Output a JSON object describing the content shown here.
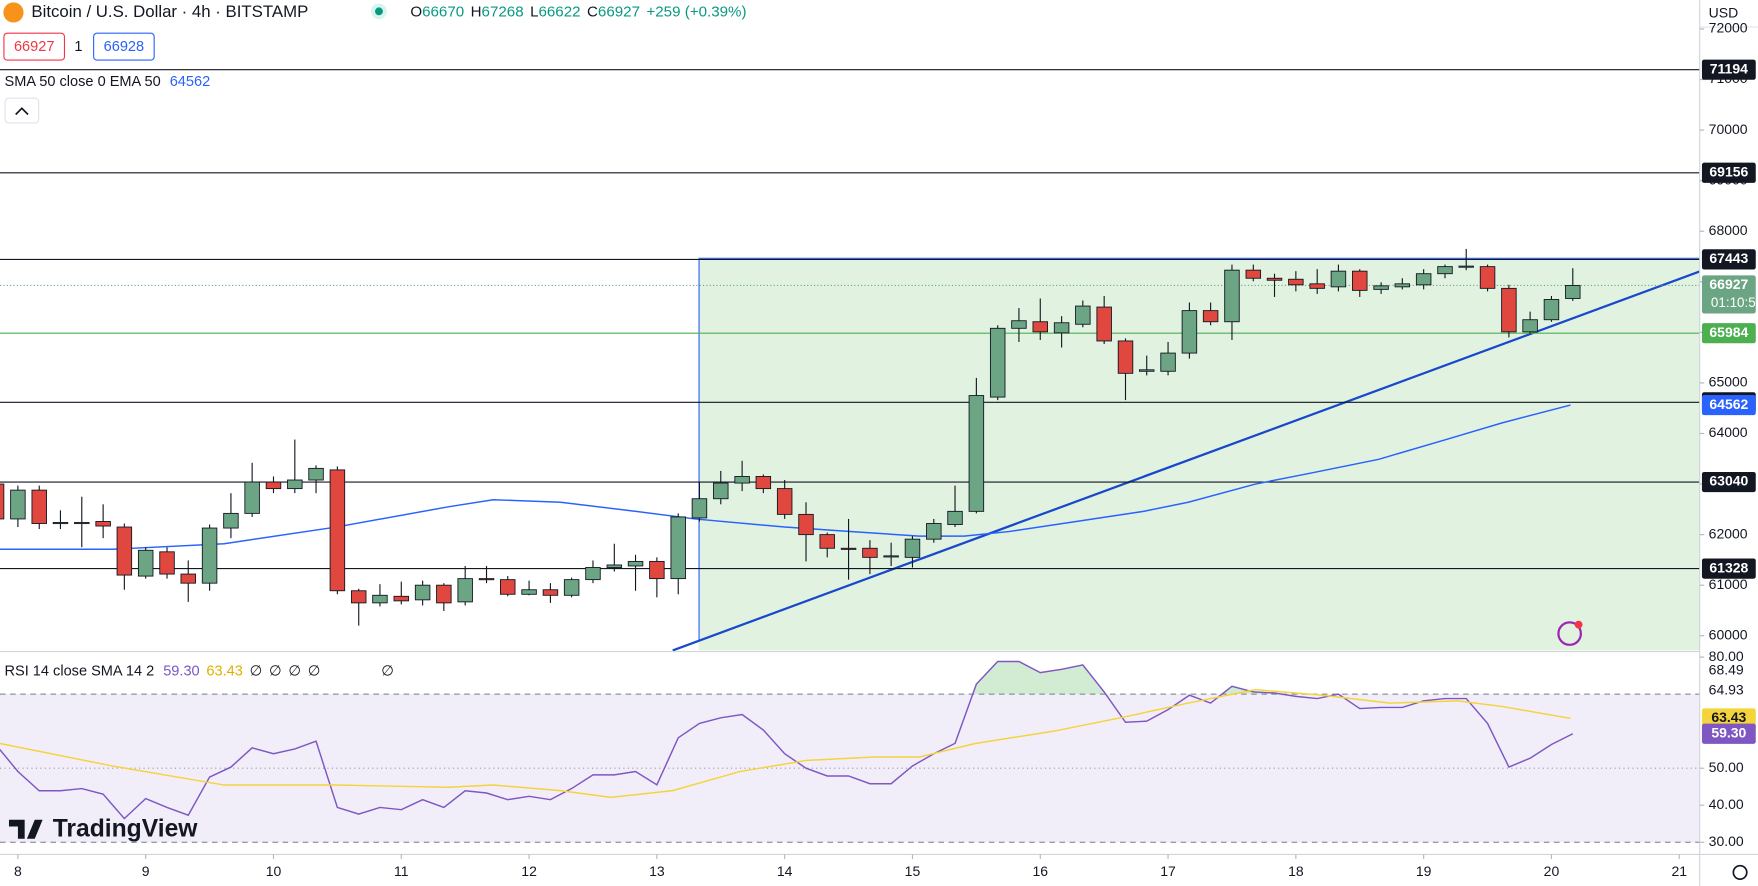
{
  "toolbar": {
    "symbol": "Bitcoin / U.S. Dollar · 4h · BITSTAMP",
    "ohlc_labels": [
      "O",
      "H",
      "L",
      "C"
    ],
    "change": "+259 (+0.39%)",
    "bid": 66927,
    "spread": 1,
    "ask": 66928,
    "indicator_label": "SMA 50 close 0 EMA 50",
    "axis_unit": "USD",
    "logo": "TradingView",
    "countdown": "01:10:5"
  },
  "chart_data": [
    {
      "type": "candlestick",
      "x": [
        7.833,
        8,
        8.167,
        8.333,
        8.5,
        8.667,
        8.833,
        9,
        9.167,
        9.333,
        9.5,
        9.667,
        9.833,
        10,
        10.167,
        10.333,
        10.5,
        10.667,
        10.833,
        11,
        11.167,
        11.333,
        11.5,
        11.667,
        11.833,
        12,
        12.167,
        12.333,
        12.5,
        12.667,
        12.833,
        13,
        13.167,
        13.333,
        13.5,
        13.667,
        13.833,
        14,
        14.167,
        14.333,
        14.5,
        14.667,
        14.833,
        15,
        15.167,
        15.333,
        15.5,
        15.667,
        15.833,
        16,
        16.167,
        16.333,
        16.5,
        16.667,
        16.833,
        17,
        17.167,
        17.333,
        17.5,
        17.667,
        17.833,
        18,
        18.167,
        18.333,
        18.5,
        18.667,
        18.833,
        19,
        19.167,
        19.333,
        19.5,
        19.667,
        19.833,
        20,
        20.167
      ],
      "open": [
        63000,
        62310,
        62880,
        62220,
        62240,
        62260,
        62150,
        61180,
        61660,
        61220,
        61040,
        62130,
        62420,
        63040,
        62910,
        63080,
        63280,
        60890,
        60650,
        60780,
        60710,
        61000,
        60670,
        61130,
        61110,
        60820,
        60910,
        60800,
        61110,
        61350,
        61380,
        61470,
        61130,
        62330,
        62710,
        63020,
        63150,
        62910,
        62400,
        62000,
        61730,
        61730,
        61580,
        61550,
        61910,
        62200,
        62460,
        64720,
        66080,
        66210,
        65990,
        66160,
        66500,
        65830,
        65230,
        65230,
        65590,
        66430,
        66210,
        67230,
        67070,
        67050,
        66960,
        66900,
        67210,
        66850,
        66900,
        66940,
        67160,
        67300,
        67300,
        66870,
        66010,
        66250,
        66670
      ],
      "high": [
        63080,
        62970,
        62970,
        62480,
        62750,
        62600,
        62220,
        61750,
        61750,
        61490,
        62200,
        62820,
        63420,
        63150,
        63880,
        63370,
        63350,
        60930,
        61020,
        61070,
        61090,
        61040,
        61380,
        61380,
        61180,
        61090,
        61040,
        61150,
        61490,
        61820,
        61600,
        61550,
        62420,
        63040,
        63260,
        63460,
        63190,
        63080,
        62640,
        62040,
        62310,
        61890,
        61840,
        61970,
        62310,
        62970,
        65100,
        66140,
        66480,
        66670,
        66320,
        66630,
        66720,
        65880,
        65540,
        65810,
        66590,
        66590,
        67340,
        67340,
        67160,
        67210,
        67250,
        67340,
        67250,
        66990,
        67070,
        67250,
        67340,
        67650,
        67340,
        66940,
        66410,
        66720,
        67268
      ],
      "low": [
        62260,
        62150,
        62110,
        62110,
        61750,
        61930,
        60910,
        61130,
        61130,
        60670,
        60890,
        61930,
        62350,
        62820,
        62820,
        62820,
        60820,
        60200,
        60580,
        60620,
        60600,
        60490,
        60600,
        61040,
        60780,
        60800,
        60650,
        60760,
        61040,
        61270,
        60890,
        60760,
        60820,
        62260,
        62600,
        62860,
        62820,
        62310,
        61470,
        61550,
        61110,
        61220,
        61380,
        61350,
        61840,
        62150,
        62420,
        64660,
        65810,
        65850,
        65700,
        66100,
        65770,
        64660,
        65150,
        65150,
        65480,
        66140,
        65850,
        67010,
        66700,
        66810,
        66760,
        66810,
        66700,
        66760,
        66850,
        66850,
        67070,
        67230,
        66810,
        65900,
        65970,
        66210,
        66622
      ],
      "close": [
        62310,
        62880,
        62220,
        62240,
        62240,
        62170,
        61200,
        61690,
        61220,
        61040,
        62130,
        62420,
        63040,
        62910,
        63080,
        63310,
        60890,
        60650,
        60800,
        60690,
        61000,
        60650,
        61130,
        61110,
        60820,
        60910,
        60800,
        61110,
        61350,
        61400,
        61470,
        61130,
        62350,
        62710,
        63020,
        63150,
        62910,
        62400,
        62000,
        61730,
        61710,
        61550,
        61580,
        61910,
        62220,
        62460,
        64750,
        66080,
        66230,
        66010,
        66190,
        66520,
        65830,
        65190,
        65260,
        65590,
        66430,
        66210,
        67230,
        67070,
        67030,
        66940,
        66870,
        67210,
        66830,
        66920,
        66960,
        67160,
        67300,
        67310,
        66870,
        66010,
        66250,
        66650,
        66927
      ],
      "up_color": "#6ba583",
      "down_color": "#e0473e",
      "xlim": [
        7.86,
        21.16
      ],
      "xticks": [
        8,
        9,
        10,
        11,
        12,
        13,
        14,
        15,
        16,
        17,
        18,
        19,
        20,
        21
      ],
      "ylim": [
        59710,
        72570
      ],
      "yticks": [
        60000,
        61000,
        62000,
        63000,
        64000,
        65000,
        66000,
        67000,
        68000,
        69000,
        70000,
        71000,
        72000
      ],
      "levels": [
        {
          "value": 71194,
          "color": "#131722"
        },
        {
          "value": 69156,
          "color": "#131722"
        },
        {
          "value": 67443,
          "color": "#131722"
        },
        {
          "value": 65984,
          "color": "#4caf50"
        },
        {
          "value": 64617,
          "color": "#131722"
        },
        {
          "value": 63040,
          "color": "#131722"
        },
        {
          "value": 61328,
          "color": "#131722"
        }
      ],
      "ema": {
        "color": "#2962ff",
        "x": [
          7.86,
          8.737,
          9.614,
          10.491,
          11.368,
          11.719,
          12.246,
          12.772,
          13.298,
          14,
          14.526,
          15.053,
          15.404,
          15.754,
          16.281,
          16.807,
          17.158,
          17.684,
          18.123,
          18.649,
          19.175,
          19.614,
          20.149
        ],
        "values": [
          61710,
          61710,
          61820,
          62150,
          62550,
          62690,
          62640,
          62480,
          62310,
          62150,
          62060,
          61970,
          61970,
          62060,
          62260,
          62460,
          62640,
          63000,
          63220,
          63490,
          63880,
          64210,
          64562
        ]
      }
    },
    {
      "type": "line",
      "title": "RSI 14 close SMA 14 2",
      "ylim": [
        26.7,
        81.5
      ],
      "yticks": [
        {
          "value": 80,
          "label": "80.00"
        },
        {
          "value": 50,
          "label": "50.00"
        },
        {
          "value": 40,
          "label": "40.00"
        },
        {
          "value": 30,
          "label": "30.00"
        }
      ],
      "band": [
        30,
        70
      ],
      "midline": 50,
      "side_labels": [
        "68.49",
        "64.93"
      ],
      "placeholders": [
        "∅",
        "∅",
        "∅",
        "∅",
        "∅"
      ],
      "series": [
        {
          "color": "#7e57c2",
          "values": [
            56.1,
            49.1,
            43.9,
            43.9,
            44.5,
            43.0,
            36.4,
            41.8,
            39.4,
            37.3,
            47.6,
            50.3,
            55.5,
            53.9,
            55.2,
            57.3,
            39.4,
            37.6,
            39.4,
            38.8,
            41.5,
            39.4,
            43.9,
            43.3,
            41.5,
            42.4,
            41.5,
            44.5,
            48.2,
            48.2,
            49.1,
            45.5,
            58.2,
            62.1,
            63.6,
            64.5,
            60.3,
            53.9,
            50.0,
            47.9,
            47.9,
            45.8,
            45.8,
            50.6,
            53.9,
            56.7,
            72.7,
            78.8,
            78.8,
            75.8,
            76.7,
            77.9,
            70.6,
            62.4,
            62.7,
            65.8,
            69.7,
            67.6,
            72.1,
            70.6,
            70.3,
            69.4,
            68.8,
            70.0,
            66.1,
            66.4,
            66.4,
            68.2,
            68.8,
            68.8,
            62.1,
            50.3,
            52.7,
            56.4,
            59.3
          ],
          "last_label": "59.30"
        },
        {
          "color": "#f5d33b",
          "x": [
            7.86,
            8.737,
            9.614,
            10.491,
            11.368,
            11.719,
            12.246,
            12.64,
            13.123,
            13.649,
            14.175,
            14.702,
            15.053,
            15.491,
            16.105,
            16.632,
            17.158,
            17.684,
            18.211,
            18.737,
            19.263,
            19.614,
            20.149
          ],
          "values": [
            56.67,
            50.61,
            45.45,
            45.45,
            44.85,
            45.45,
            43.94,
            42.12,
            43.94,
            49.09,
            52.12,
            53.03,
            53.03,
            56.67,
            60,
            63.64,
            67.58,
            71.21,
            69.7,
            67.58,
            68.18,
            66.67,
            63.43
          ],
          "last_label": "63.43"
        }
      ]
    }
  ]
}
